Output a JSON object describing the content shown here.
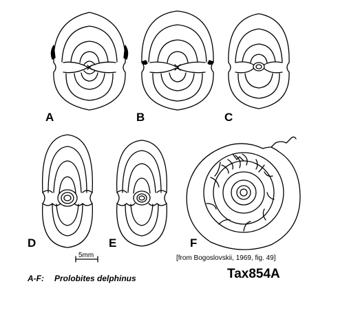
{
  "figures": [
    {
      "label": "A"
    },
    {
      "label": "B"
    },
    {
      "label": "C"
    },
    {
      "label": "D"
    },
    {
      "label": "E"
    },
    {
      "label": "F"
    }
  ],
  "scale_bar": {
    "text": "5mm"
  },
  "source": "[from Bogoslovskii, 1969, fig. 49]",
  "caption": {
    "prefix": "A-F:",
    "species": "Prolobites delphinus"
  },
  "plate_id": "Tax854A"
}
